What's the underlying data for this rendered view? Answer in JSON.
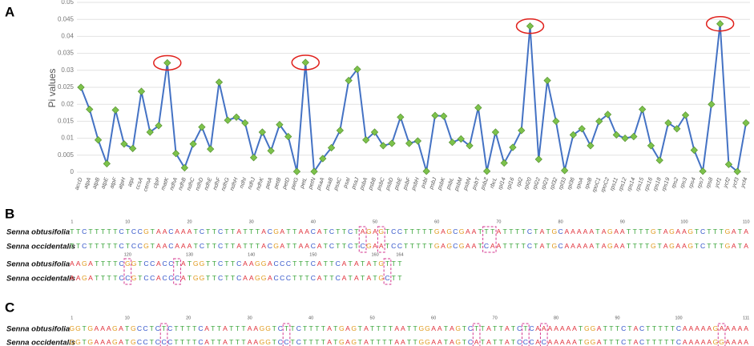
{
  "chart_data": {
    "type": "line",
    "panel": "A",
    "ylabel": "Pi values",
    "categories": [
      "accD",
      "atpA",
      "atpB",
      "atpE",
      "atpF",
      "atpH",
      "atpI",
      "ccsA",
      "cemA",
      "clpP",
      "matK",
      "ndhA",
      "ndhB",
      "ndhC",
      "ndhD",
      "ndhE",
      "ndhF",
      "ndhG",
      "ndhH",
      "ndhI",
      "ndhJ",
      "ndhK",
      "petA",
      "petB",
      "petD",
      "petG",
      "petL",
      "petN",
      "psaA",
      "psaB",
      "psaC",
      "psaI",
      "psaJ",
      "psbA",
      "psbB",
      "psbC",
      "psbD",
      "psbE",
      "psbF",
      "psbH",
      "psbI",
      "psbJ",
      "psbK",
      "psbL",
      "psbM",
      "psbN",
      "psbT",
      "psbZ",
      "rbcL",
      "rpl14",
      "rpl16",
      "rpl2",
      "rpl20",
      "rpl22",
      "rpl23",
      "rpl32",
      "rpl33",
      "rpl36",
      "rpoA",
      "rpoB",
      "rpoC1",
      "rpoC2",
      "rps11",
      "rps12",
      "rps14",
      "rps15",
      "rps16",
      "rps18",
      "rps19",
      "rps2",
      "rps3",
      "rps4",
      "rps7",
      "rps8",
      "ycf1",
      "ycf2",
      "ycf3",
      "ycf4"
    ],
    "values": [
      0.025,
      0.0185,
      0.0095,
      0.0025,
      0.0183,
      0.0083,
      0.007,
      0.0238,
      0.0118,
      0.0137,
      0.0322,
      0.0055,
      0.0013,
      0.0083,
      0.0133,
      0.0068,
      0.0265,
      0.0153,
      0.0162,
      0.0145,
      0.0043,
      0.0118,
      0.0063,
      0.014,
      0.0105,
      0.0002,
      0.0323,
      0.0002,
      0.004,
      0.0072,
      0.0123,
      0.027,
      0.0303,
      0.0095,
      0.0118,
      0.0078,
      0.0085,
      0.0162,
      0.0085,
      0.0092,
      0.0003,
      0.0167,
      0.0165,
      0.0088,
      0.0098,
      0.0078,
      0.019,
      0.0003,
      0.0118,
      0.0027,
      0.0073,
      0.0123,
      0.043,
      0.0038,
      0.027,
      0.015,
      0.0005,
      0.011,
      0.0128,
      0.0078,
      0.015,
      0.017,
      0.011,
      0.01,
      0.0105,
      0.0185,
      0.0078,
      0.0035,
      0.0145,
      0.0128,
      0.0168,
      0.0065,
      0.0003,
      0.02,
      0.0437,
      0.0023,
      0.0002,
      0.0145
    ],
    "color": "#4472c4",
    "marker_color": "#7dc24b",
    "circled": [
      "matK",
      "petL",
      "rpl20",
      "ycf1"
    ],
    "circle_color": "#e0201b",
    "ylim": [
      0,
      0.05
    ],
    "yticks": [
      0,
      0.005,
      0.01,
      0.015,
      0.02,
      0.025,
      0.03,
      0.035,
      0.04,
      0.045,
      0.05
    ],
    "grid": true
  },
  "alignments": [
    {
      "panel": "B",
      "rows": [
        {
          "ruler": [
            1,
            10,
            20,
            30,
            40,
            50,
            60,
            70,
            80,
            90,
            100,
            110
          ],
          "sequences": [
            {
              "species": "Senna obtusifolia",
              "seq": "TTCTTTTTCTCCGTAACAAATCTTCTTATTTACGATTAACATCTTCTAGAGTCCTTTTTGAGCGAATTTATTTTCTATGCAAAAATAGAATTTTGTAGAAGTCTTTGATA"
            },
            {
              "species": "Senna occidentalis",
              "seq": "TTCTTTTTCTCCGTAACAAATCTTCTTATTTACGATTAACATCTTCTCGAATCCTTTTTGAGCGAATCAATTTTCTATGCAAAAATAGAATTTTGTAGAAGTCTTTGATA"
            }
          ]
        },
        {
          "ruler": [
            120,
            130,
            140,
            150,
            160,
            164
          ],
          "sequences": [
            {
              "species": "Senna obtusifolia",
              "seq": "AAGATTTTCGGTCCACCTATGGTTCTTCAAGGACCCTTTCATTCATATATGTTT"
            },
            {
              "species": "Senna occidentalis",
              "seq": "AAGATTTTCCGTCCACCCATGGTTCTTCAAGGACCCTTTCATTCATATATGCTT"
            }
          ]
        }
      ]
    },
    {
      "panel": "C",
      "rows": [
        {
          "ruler": [
            1,
            10,
            20,
            30,
            40,
            50,
            60,
            70,
            80,
            90,
            100,
            111
          ],
          "sequences": [
            {
              "species": "Senna obtusifolia",
              "seq": "GGTGAAAGATGCCTCTCTTTTCATTATTTAAGGTCTTCTTTTATGAGTATTTTAATTGGAATAGTCTTATTATCTCAAAAAAATGGATTTCTACTTTTTCAAAAAGAAAAA"
            },
            {
              "species": "Senna occidentalis",
              "seq": "GGTGAAAGATGCCTCCCTTTTCATTATTTAAGGTCCTCTTTTATGAGTATTTTAATTGGAATAGTCATATTATCCCACAAAAATGGATTTCTACTTTTTCAAAAAGGAAAA"
            }
          ]
        }
      ]
    }
  ]
}
